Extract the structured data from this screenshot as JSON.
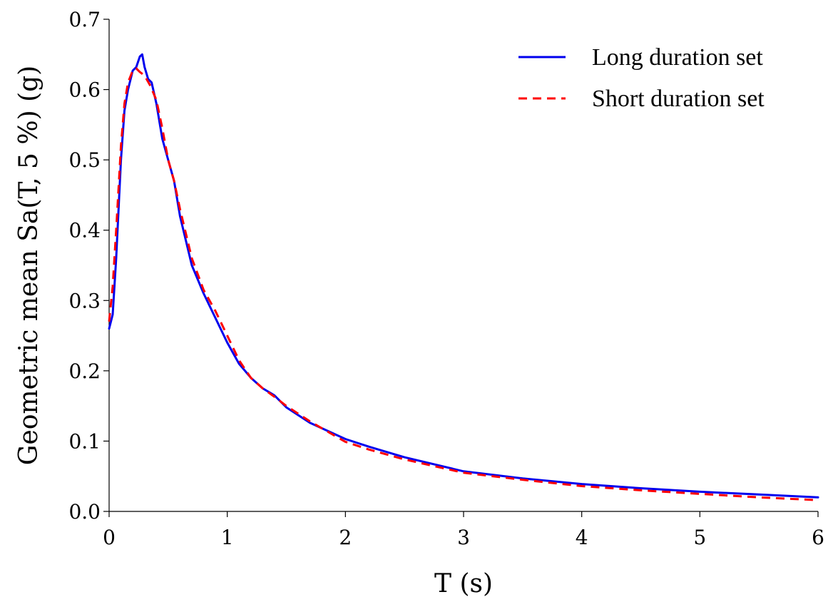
{
  "chart_data": {
    "type": "line",
    "xlabel": "T (s)",
    "ylabel": "Geometric mean Sa(T, 5 %) (g)",
    "xlim": [
      0,
      6
    ],
    "ylim": [
      0,
      0.7
    ],
    "x_ticks": [
      "0",
      "1",
      "2",
      "3",
      "4",
      "5",
      "6"
    ],
    "y_ticks": [
      "0.0",
      "0.1",
      "0.2",
      "0.3",
      "0.4",
      "0.5",
      "0.6",
      "0.7"
    ],
    "grid": false,
    "legend_position": "top-right",
    "series": [
      {
        "name": "Long duration set",
        "color": "#0000ee",
        "style": "solid",
        "x": [
          0,
          0.03,
          0.06,
          0.1,
          0.13,
          0.16,
          0.2,
          0.23,
          0.26,
          0.28,
          0.3,
          0.33,
          0.36,
          0.4,
          0.45,
          0.5,
          0.55,
          0.6,
          0.7,
          0.8,
          0.9,
          1.0,
          1.1,
          1.2,
          1.3,
          1.4,
          1.5,
          1.7,
          2.0,
          2.2,
          2.5,
          3.0,
          3.5,
          4.0,
          4.5,
          5.0,
          5.5,
          6.0
        ],
        "values": [
          0.26,
          0.28,
          0.36,
          0.5,
          0.57,
          0.6,
          0.627,
          0.632,
          0.647,
          0.65,
          0.632,
          0.615,
          0.61,
          0.58,
          0.53,
          0.5,
          0.47,
          0.42,
          0.35,
          0.31,
          0.275,
          0.24,
          0.21,
          0.19,
          0.175,
          0.165,
          0.148,
          0.126,
          0.103,
          0.092,
          0.077,
          0.057,
          0.047,
          0.039,
          0.033,
          0.028,
          0.024,
          0.02
        ]
      },
      {
        "name": "Short duration set",
        "color": "#ff0000",
        "style": "dashed",
        "x": [
          0,
          0.03,
          0.06,
          0.1,
          0.13,
          0.16,
          0.2,
          0.23,
          0.26,
          0.3,
          0.35,
          0.4,
          0.45,
          0.5,
          0.55,
          0.6,
          0.7,
          0.8,
          0.9,
          1.0,
          1.1,
          1.2,
          1.3,
          1.4,
          1.5,
          1.7,
          2.0,
          2.2,
          2.5,
          3.0,
          3.5,
          4.0,
          4.5,
          5.0,
          5.5,
          6.0
        ],
        "values": [
          0.27,
          0.32,
          0.4,
          0.52,
          0.58,
          0.61,
          0.627,
          0.63,
          0.625,
          0.62,
          0.605,
          0.585,
          0.545,
          0.5,
          0.47,
          0.43,
          0.36,
          0.315,
          0.285,
          0.25,
          0.215,
          0.19,
          0.175,
          0.163,
          0.15,
          0.128,
          0.099,
          0.088,
          0.074,
          0.055,
          0.045,
          0.036,
          0.03,
          0.025,
          0.02,
          0.016
        ]
      }
    ]
  }
}
